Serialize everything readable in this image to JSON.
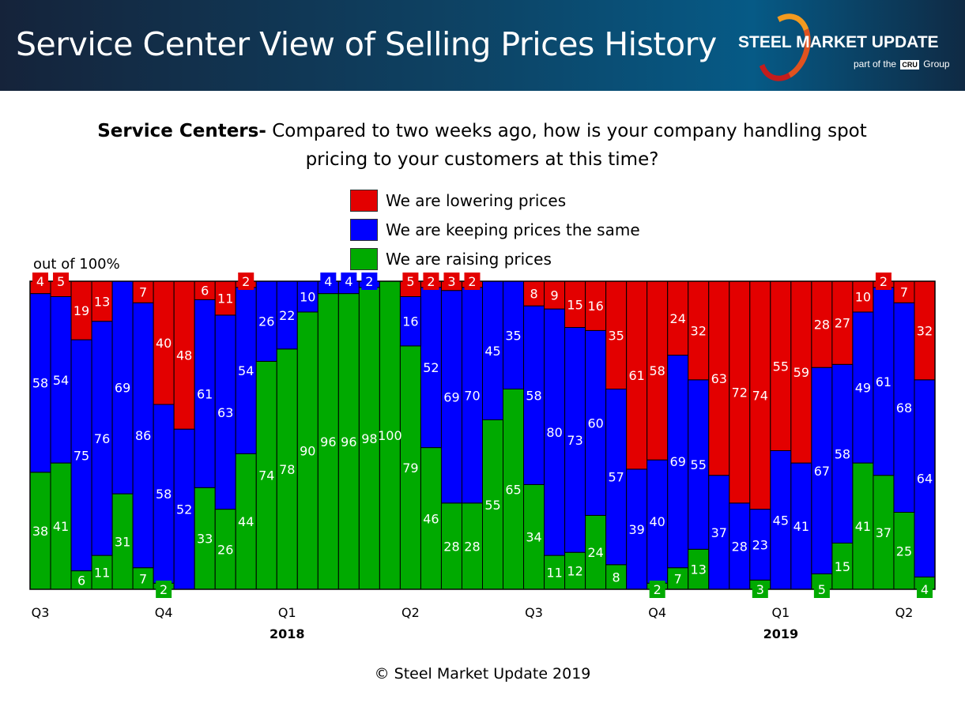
{
  "header": {
    "title": "Service Center View of Selling Prices History",
    "logo_text": "STEEL MARKET UPDATE",
    "logo_sub_before": "part of the",
    "logo_sub_badge": "CRU",
    "logo_sub_after": "Group"
  },
  "footer": "© Steel Market Update 2019",
  "colors": {
    "lowering": "#e30000",
    "same": "#0000ff",
    "raising": "#00aa00",
    "header_bg": "#0d4466"
  },
  "chart_data": {
    "type": "bar",
    "stacked": true,
    "title_bold": "Service Centers-",
    "title": "Compared to two weeks ago, how is your company handling spot pricing to your customers at this time?",
    "ylabel": "out of 100%",
    "ylim": [
      0,
      100
    ],
    "grid": false,
    "legend_position": "top-center",
    "x_tick_labels": [
      {
        "bar": 1,
        "label": "Q3"
      },
      {
        "bar": 7,
        "label": "Q4"
      },
      {
        "bar": 13,
        "label": "Q1",
        "year": "2018"
      },
      {
        "bar": 19,
        "label": "Q2"
      },
      {
        "bar": 25,
        "label": "Q3"
      },
      {
        "bar": 31,
        "label": "Q4"
      },
      {
        "bar": 37,
        "label": "Q1",
        "year": "2019"
      },
      {
        "bar": 43,
        "label": "Q2"
      }
    ],
    "series": [
      {
        "name": "We are lowering prices",
        "color": "#e30000",
        "values": [
          4,
          5,
          19,
          13,
          0,
          7,
          40,
          48,
          6,
          11,
          2,
          0,
          0,
          0,
          0,
          0,
          0,
          0,
          5,
          2,
          3,
          2,
          0,
          0,
          8,
          9,
          15,
          16,
          35,
          61,
          58,
          24,
          32,
          63,
          72,
          74,
          55,
          59,
          28,
          27,
          10,
          2,
          7,
          32
        ]
      },
      {
        "name": "We are keeping prices the same",
        "color": "#0000ff",
        "values": [
          58,
          54,
          75,
          76,
          69,
          86,
          58,
          52,
          61,
          63,
          54,
          26,
          22,
          10,
          4,
          4,
          2,
          0,
          16,
          52,
          69,
          70,
          45,
          35,
          58,
          80,
          73,
          60,
          57,
          39,
          40,
          69,
          55,
          37,
          28,
          23,
          45,
          41,
          67,
          58,
          49,
          61,
          68,
          64
        ]
      },
      {
        "name": "We are raising prices",
        "color": "#00aa00",
        "values": [
          38,
          41,
          6,
          11,
          31,
          7,
          2,
          0,
          33,
          26,
          44,
          74,
          78,
          90,
          96,
          96,
          98,
          100,
          79,
          46,
          28,
          28,
          55,
          65,
          34,
          11,
          12,
          24,
          8,
          0,
          2,
          7,
          13,
          0,
          0,
          3,
          0,
          0,
          5,
          15,
          41,
          37,
          25,
          4
        ]
      }
    ]
  }
}
